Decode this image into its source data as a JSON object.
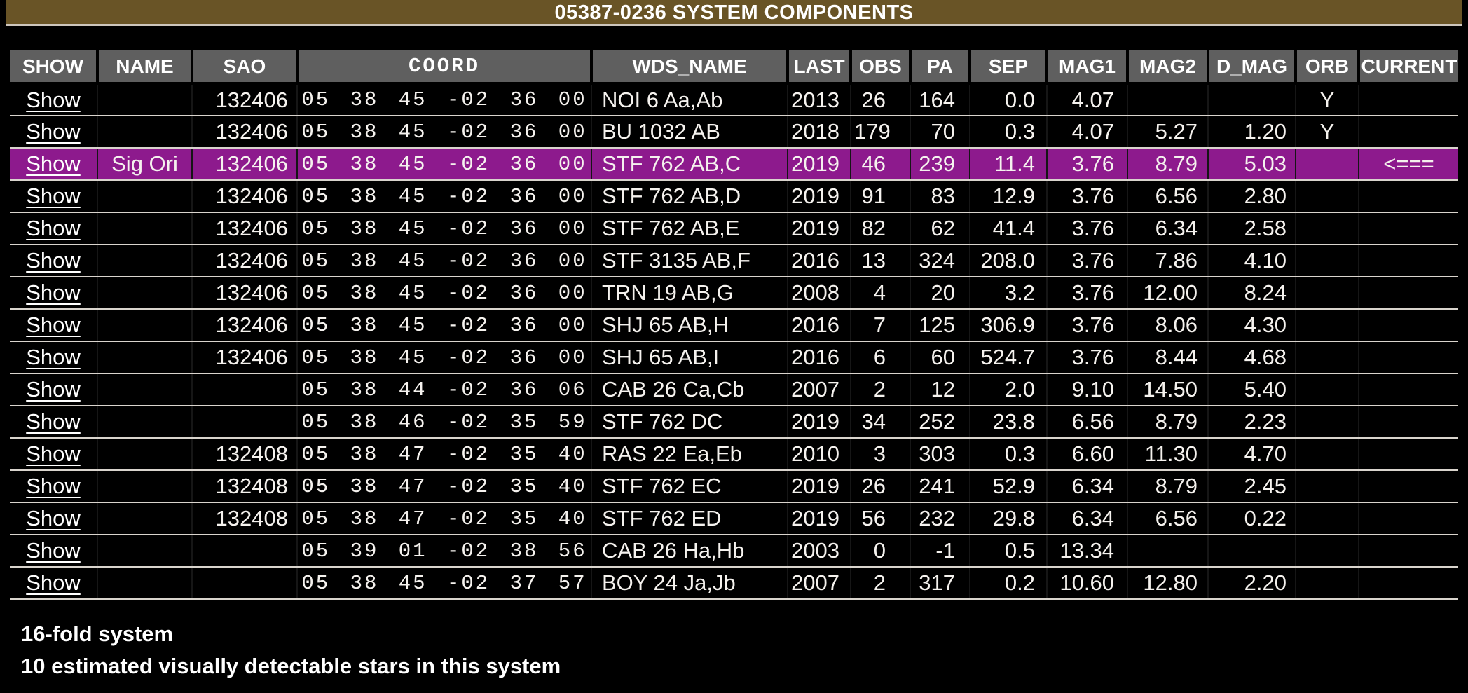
{
  "page": {
    "title": "05387-0236 SYSTEM COMPONENTS"
  },
  "colors": {
    "background": "#000000",
    "text": "#ffffff",
    "title_bar": "#695426",
    "header_bg": "#5f5f5f",
    "highlight_row": "#8d1a8d",
    "row_separator": "#d9d4cd"
  },
  "table": {
    "columns": [
      {
        "key": "show",
        "label": "SHOW"
      },
      {
        "key": "name",
        "label": "NAME"
      },
      {
        "key": "sao",
        "label": "SAO"
      },
      {
        "key": "coord",
        "label": "COORD"
      },
      {
        "key": "wds_name",
        "label": "WDS_NAME"
      },
      {
        "key": "last",
        "label": "LAST"
      },
      {
        "key": "obs",
        "label": "OBS"
      },
      {
        "key": "pa",
        "label": "PA"
      },
      {
        "key": "sep",
        "label": "SEP"
      },
      {
        "key": "mag1",
        "label": "MAG1"
      },
      {
        "key": "mag2",
        "label": "MAG2"
      },
      {
        "key": "d_mag",
        "label": "D_MAG"
      },
      {
        "key": "orb",
        "label": "ORB"
      },
      {
        "key": "current",
        "label": "CURRENT"
      }
    ],
    "highlighted_row_index": 2,
    "rows": [
      {
        "show": "Show",
        "name": "",
        "sao": "132406",
        "coord": "05 38 45 -02 36 00",
        "wds_name": "NOI 6 Aa,Ab",
        "last": "2013",
        "obs": "26",
        "pa": "164",
        "sep": "0.0",
        "mag1": "4.07",
        "mag2": "",
        "d_mag": "",
        "orb": "Y",
        "current": ""
      },
      {
        "show": "Show",
        "name": "",
        "sao": "132406",
        "coord": "05 38 45 -02 36 00",
        "wds_name": "BU 1032 AB",
        "last": "2018",
        "obs": "179",
        "pa": "70",
        "sep": "0.3",
        "mag1": "4.07",
        "mag2": "5.27",
        "d_mag": "1.20",
        "orb": "Y",
        "current": ""
      },
      {
        "show": "Show",
        "name": "Sig Ori",
        "sao": "132406",
        "coord": "05 38 45 -02 36 00",
        "wds_name": "STF 762 AB,C",
        "last": "2019",
        "obs": "46",
        "pa": "239",
        "sep": "11.4",
        "mag1": "3.76",
        "mag2": "8.79",
        "d_mag": "5.03",
        "orb": "",
        "current": "<==="
      },
      {
        "show": "Show",
        "name": "",
        "sao": "132406",
        "coord": "05 38 45 -02 36 00",
        "wds_name": "STF 762 AB,D",
        "last": "2019",
        "obs": "91",
        "pa": "83",
        "sep": "12.9",
        "mag1": "3.76",
        "mag2": "6.56",
        "d_mag": "2.80",
        "orb": "",
        "current": ""
      },
      {
        "show": "Show",
        "name": "",
        "sao": "132406",
        "coord": "05 38 45 -02 36 00",
        "wds_name": "STF 762 AB,E",
        "last": "2019",
        "obs": "82",
        "pa": "62",
        "sep": "41.4",
        "mag1": "3.76",
        "mag2": "6.34",
        "d_mag": "2.58",
        "orb": "",
        "current": ""
      },
      {
        "show": "Show",
        "name": "",
        "sao": "132406",
        "coord": "05 38 45 -02 36 00",
        "wds_name": "STF 3135 AB,F",
        "last": "2016",
        "obs": "13",
        "pa": "324",
        "sep": "208.0",
        "mag1": "3.76",
        "mag2": "7.86",
        "d_mag": "4.10",
        "orb": "",
        "current": ""
      },
      {
        "show": "Show",
        "name": "",
        "sao": "132406",
        "coord": "05 38 45 -02 36 00",
        "wds_name": "TRN 19 AB,G",
        "last": "2008",
        "obs": "4",
        "pa": "20",
        "sep": "3.2",
        "mag1": "3.76",
        "mag2": "12.00",
        "d_mag": "8.24",
        "orb": "",
        "current": ""
      },
      {
        "show": "Show",
        "name": "",
        "sao": "132406",
        "coord": "05 38 45 -02 36 00",
        "wds_name": "SHJ 65 AB,H",
        "last": "2016",
        "obs": "7",
        "pa": "125",
        "sep": "306.9",
        "mag1": "3.76",
        "mag2": "8.06",
        "d_mag": "4.30",
        "orb": "",
        "current": ""
      },
      {
        "show": "Show",
        "name": "",
        "sao": "132406",
        "coord": "05 38 45 -02 36 00",
        "wds_name": "SHJ 65 AB,I",
        "last": "2016",
        "obs": "6",
        "pa": "60",
        "sep": "524.7",
        "mag1": "3.76",
        "mag2": "8.44",
        "d_mag": "4.68",
        "orb": "",
        "current": ""
      },
      {
        "show": "Show",
        "name": "",
        "sao": "",
        "coord": "05 38 44 -02 36 06",
        "wds_name": "CAB 26 Ca,Cb",
        "last": "2007",
        "obs": "2",
        "pa": "12",
        "sep": "2.0",
        "mag1": "9.10",
        "mag2": "14.50",
        "d_mag": "5.40",
        "orb": "",
        "current": ""
      },
      {
        "show": "Show",
        "name": "",
        "sao": "",
        "coord": "05 38 46 -02 35 59",
        "wds_name": "STF 762 DC",
        "last": "2019",
        "obs": "34",
        "pa": "252",
        "sep": "23.8",
        "mag1": "6.56",
        "mag2": "8.79",
        "d_mag": "2.23",
        "orb": "",
        "current": ""
      },
      {
        "show": "Show",
        "name": "",
        "sao": "132408",
        "coord": "05 38 47 -02 35 40",
        "wds_name": "RAS 22 Ea,Eb",
        "last": "2010",
        "obs": "3",
        "pa": "303",
        "sep": "0.3",
        "mag1": "6.60",
        "mag2": "11.30",
        "d_mag": "4.70",
        "orb": "",
        "current": ""
      },
      {
        "show": "Show",
        "name": "",
        "sao": "132408",
        "coord": "05 38 47 -02 35 40",
        "wds_name": "STF 762 EC",
        "last": "2019",
        "obs": "26",
        "pa": "241",
        "sep": "52.9",
        "mag1": "6.34",
        "mag2": "8.79",
        "d_mag": "2.45",
        "orb": "",
        "current": ""
      },
      {
        "show": "Show",
        "name": "",
        "sao": "132408",
        "coord": "05 38 47 -02 35 40",
        "wds_name": "STF 762 ED",
        "last": "2019",
        "obs": "56",
        "pa": "232",
        "sep": "29.8",
        "mag1": "6.34",
        "mag2": "6.56",
        "d_mag": "0.22",
        "orb": "",
        "current": ""
      },
      {
        "show": "Show",
        "name": "",
        "sao": "",
        "coord": "05 39 01 -02 38 56",
        "wds_name": "CAB 26 Ha,Hb",
        "last": "2003",
        "obs": "0",
        "pa": "-1",
        "sep": "0.5",
        "mag1": "13.34",
        "mag2": "",
        "d_mag": "",
        "orb": "",
        "current": ""
      },
      {
        "show": "Show",
        "name": "",
        "sao": "",
        "coord": "05 38 45 -02 37 57",
        "wds_name": "BOY 24 Ja,Jb",
        "last": "2007",
        "obs": "2",
        "pa": "317",
        "sep": "0.2",
        "mag1": "10.60",
        "mag2": "12.80",
        "d_mag": "2.20",
        "orb": "",
        "current": ""
      }
    ]
  },
  "footer": {
    "line1": "16-fold system",
    "line2": "10 estimated visually detectable stars in this system"
  }
}
